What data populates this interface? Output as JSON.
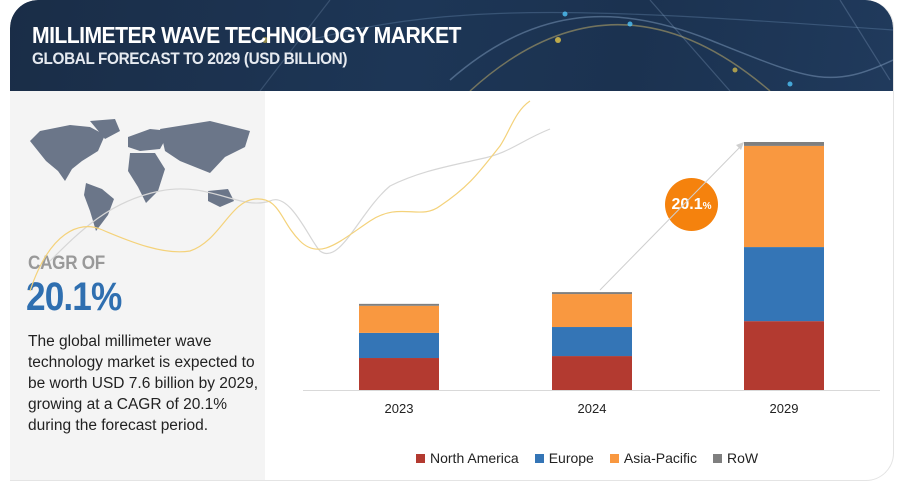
{
  "header": {
    "title": "MILLIMETER WAVE TECHNOLOGY MARKET",
    "subtitle": "GLOBAL FORECAST TO 2029 (USD BILLION)"
  },
  "left_panel": {
    "map_icon": "world-map-icon",
    "cagr_label": "CAGR OF",
    "cagr_value": "20.1%",
    "description": "The global millimeter wave technology market is expected to be worth USD 7.6 billion by 2029, growing at a CAGR of 20.1% during the forecast period."
  },
  "bubble": {
    "value": "20.1",
    "unit": "%"
  },
  "colors": {
    "north_america": "#b33a30",
    "europe": "#3475b6",
    "asia_pacific": "#f99840",
    "row": "#7f7f7f",
    "accent": "#f5820d",
    "header_bg": "#1d3656"
  },
  "chart_data": {
    "type": "bar",
    "stacked": true,
    "title": "MILLIMETER WAVE TECHNOLOGY MARKET",
    "subtitle": "GLOBAL FORECAST TO 2029 (USD BILLION)",
    "xlabel": "",
    "ylabel": "USD Billion",
    "categories": [
      "2023",
      "2024",
      "2029"
    ],
    "series": [
      {
        "name": "North America",
        "color": "#b33a30",
        "values": [
          0.98,
          1.04,
          2.11
        ]
      },
      {
        "name": "Europe",
        "color": "#3475b6",
        "values": [
          0.77,
          0.89,
          2.27
        ]
      },
      {
        "name": "Asia-Pacific",
        "color": "#f99840",
        "values": [
          0.83,
          1.01,
          3.1
        ]
      },
      {
        "name": "RoW",
        "color": "#7f7f7f",
        "values": [
          0.06,
          0.06,
          0.12
        ]
      }
    ],
    "ylim": [
      0,
      7.6
    ],
    "grid": false,
    "legend_position": "bottom",
    "annotations": [
      {
        "text": "20.1%",
        "type": "CAGR bubble with arrow from 2023 to 2029"
      }
    ]
  }
}
